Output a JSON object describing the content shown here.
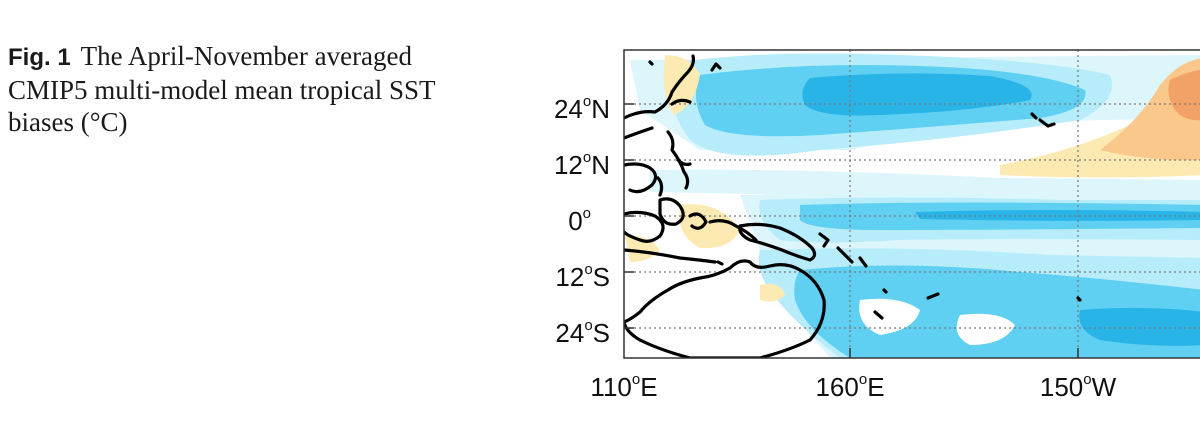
{
  "caption": {
    "label": "Fig. 1",
    "text": "The April-November averaged CMIP5 multi-model mean tropical SST biases (°C)"
  },
  "map": {
    "lat_ticks": [
      {
        "deg": "24",
        "hem": "N"
      },
      {
        "deg": "12",
        "hem": "N"
      },
      {
        "deg": "0",
        "hem": ""
      },
      {
        "deg": "12",
        "hem": "S"
      },
      {
        "deg": "24",
        "hem": "S"
      }
    ],
    "lon_ticks": [
      {
        "deg": "110",
        "hem": "E"
      },
      {
        "deg": "160",
        "hem": "E"
      },
      {
        "deg": "150",
        "hem": "W"
      }
    ],
    "colors": {
      "cold_strong": "#29b4e8",
      "cold": "#5fd0f2",
      "cold_light": "#b7ecfa",
      "cold_faint": "#dcf6fc",
      "warm_light": "#fde9b2",
      "warm": "#f9c88a",
      "warm_strong": "#f3a267",
      "coast": "#000000"
    }
  }
}
